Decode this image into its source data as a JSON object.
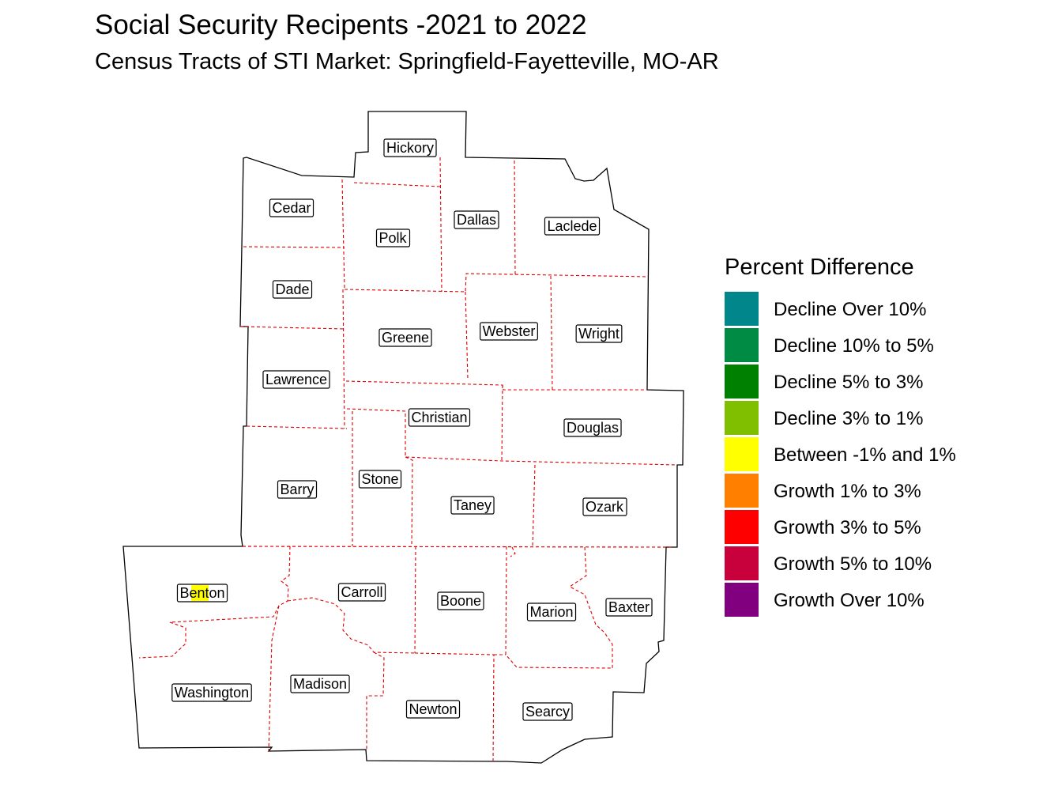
{
  "title": "Social Security Recipents -2021 to 2022",
  "subtitle": "Census Tracts of STI Market: Springfield-Fayetteville, MO-AR",
  "legend": {
    "title": "Percent Difference",
    "items": [
      {
        "label": "Decline Over 10%",
        "color": "#00868B"
      },
      {
        "label": "Decline 10% to 5%",
        "color": "#008B45"
      },
      {
        "label": "Decline 5% to 3%",
        "color": "#008000"
      },
      {
        "label": "Decline 3% to 1%",
        "color": "#7FBF00"
      },
      {
        "label": "Between -1% and 1%",
        "color": "#FFFF00"
      },
      {
        "label": "Growth 1% to 3%",
        "color": "#FF7F00"
      },
      {
        "label": "Growth 3% to 5%",
        "color": "#FF0000"
      },
      {
        "label": "Growth 5% to 10%",
        "color": "#C8003C"
      },
      {
        "label": "Growth Over 10%",
        "color": "#800080"
      }
    ]
  },
  "counties": [
    {
      "name": "Hickory",
      "color": "#FFFFFF"
    },
    {
      "name": "Cedar",
      "color": "#FFFFFF"
    },
    {
      "name": "Polk",
      "color": "#FFFFFF"
    },
    {
      "name": "Dallas",
      "color": "#FFFFFF"
    },
    {
      "name": "Laclede",
      "color": "#FFFFFF"
    },
    {
      "name": "Dade",
      "color": "#FFFFFF"
    },
    {
      "name": "Greene",
      "color": "#FFFFFF"
    },
    {
      "name": "Webster",
      "color": "#FFFFFF"
    },
    {
      "name": "Wright",
      "color": "#FFFFFF"
    },
    {
      "name": "Lawrence",
      "color": "#FFFFFF"
    },
    {
      "name": "Christian",
      "color": "#FFFFFF"
    },
    {
      "name": "Douglas",
      "color": "#FFFFFF"
    },
    {
      "name": "Barry",
      "color": "#FFFFFF"
    },
    {
      "name": "Stone",
      "color": "#FFFFFF"
    },
    {
      "name": "Taney",
      "color": "#FFFFFF"
    },
    {
      "name": "Ozark",
      "color": "#FFFFFF"
    },
    {
      "name": "Benton",
      "color": "#FFFFFF"
    },
    {
      "name": "Carroll",
      "color": "#FFFFFF"
    },
    {
      "name": "Boone",
      "color": "#FFFFFF"
    },
    {
      "name": "Marion",
      "color": "#FFFFFF"
    },
    {
      "name": "Baxter",
      "color": "#FFFFFF"
    },
    {
      "name": "Washington",
      "color": "#FFFFFF"
    },
    {
      "name": "Madison",
      "color": "#FFFFFF"
    },
    {
      "name": "Newton",
      "color": "#FFFFFF"
    },
    {
      "name": "Searcy",
      "color": "#FFFFFF"
    }
  ],
  "highlight": {
    "county": "Benton",
    "color": "#FFFF00"
  }
}
